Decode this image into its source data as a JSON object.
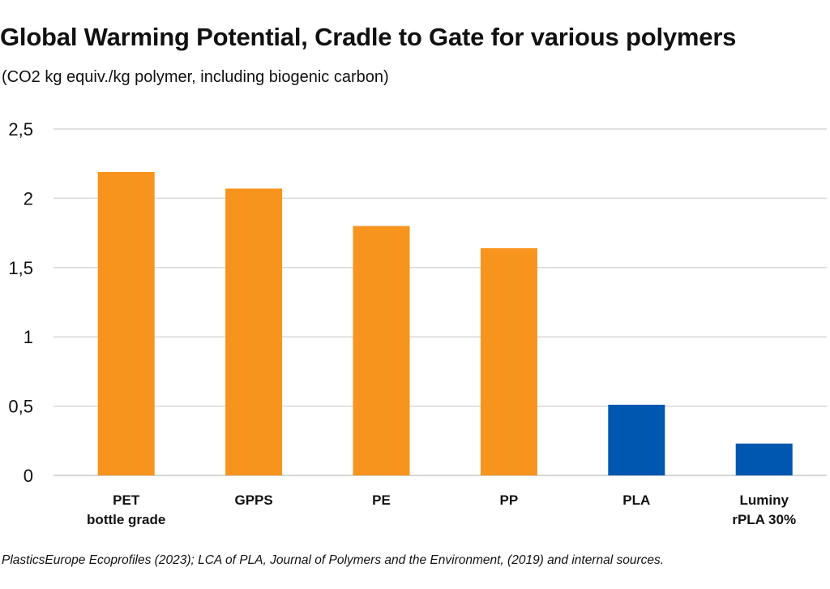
{
  "chart_data": {
    "type": "bar",
    "title": "Global Warming Potential, Cradle to Gate for various polymers",
    "subtitle": "(CO2 kg equiv./kg polymer, including biogenic carbon)",
    "categories": [
      [
        "PET",
        "bottle grade"
      ],
      [
        "GPPS"
      ],
      [
        "PE"
      ],
      [
        "PP"
      ],
      [
        "PLA"
      ],
      [
        "Luminy",
        "rPLA 30%"
      ]
    ],
    "values": [
      2.19,
      2.07,
      1.8,
      1.64,
      0.51,
      0.23
    ],
    "bar_colors": [
      "#F7941D",
      "#F7941D",
      "#F7941D",
      "#F7941D",
      "#0057B0",
      "#0057B0"
    ],
    "ylim": [
      0,
      2.5
    ],
    "yticks": [
      0,
      0.5,
      1,
      1.5,
      2,
      2.5
    ],
    "ytick_labels": [
      "0",
      "0,5",
      "1",
      "1,5",
      "2",
      "2,5"
    ],
    "grid": true,
    "xlabel": "",
    "ylabel": ""
  },
  "source": "PlasticsEurope Ecoprofiles (2023); LCA of PLA, Journal of Polymers and the Environment, (2019) and internal sources."
}
